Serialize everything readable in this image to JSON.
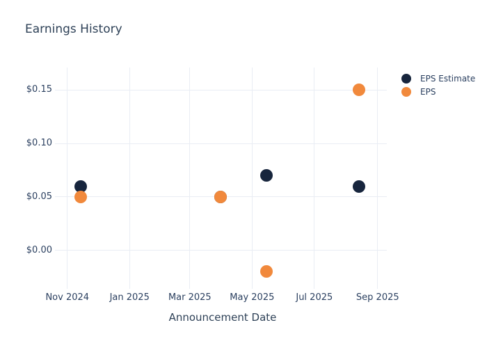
{
  "chart_data": {
    "type": "scatter",
    "title": "Earnings History",
    "xlabel": "Announcement Date",
    "ylabel": "",
    "grid": true,
    "legend_position": "top-right",
    "background_color": "#ffffff",
    "gridline_color": "#e9edf4",
    "text_color": "#2a3f5f",
    "title_color": "#2e4157",
    "x_domain": [
      "2024-10-24",
      "2025-09-10"
    ],
    "x_ticks": [
      {
        "date": "2024-11-01",
        "label": "Nov 2024"
      },
      {
        "date": "2025-01-01",
        "label": "Jan 2025"
      },
      {
        "date": "2025-03-01",
        "label": "Mar 2025"
      },
      {
        "date": "2025-05-01",
        "label": "May 2025"
      },
      {
        "date": "2025-07-01",
        "label": "Jul 2025"
      },
      {
        "date": "2025-09-01",
        "label": "Sep 2025"
      }
    ],
    "ylim": [
      -0.034,
      0.171
    ],
    "y_ticks": [
      {
        "value": 0.0,
        "label": "$0.00"
      },
      {
        "value": 0.05,
        "label": "$0.05"
      },
      {
        "value": 0.1,
        "label": "$0.10"
      },
      {
        "value": 0.15,
        "label": "$0.15"
      }
    ],
    "series": [
      {
        "name": "EPS Estimate",
        "color": "#17253d",
        "marker": "circle",
        "points": [
          {
            "date": "2024-11-14",
            "value": 0.06
          },
          {
            "date": "2025-03-31",
            "value": 0.05
          },
          {
            "date": "2025-05-15",
            "value": 0.07
          },
          {
            "date": "2025-08-14",
            "value": 0.06
          }
        ]
      },
      {
        "name": "EPS",
        "color": "#f1893c",
        "marker": "circle",
        "points": [
          {
            "date": "2024-11-14",
            "value": 0.05
          },
          {
            "date": "2025-03-31",
            "value": 0.05
          },
          {
            "date": "2025-05-15",
            "value": -0.02
          },
          {
            "date": "2025-08-14",
            "value": 0.15
          }
        ]
      }
    ]
  }
}
